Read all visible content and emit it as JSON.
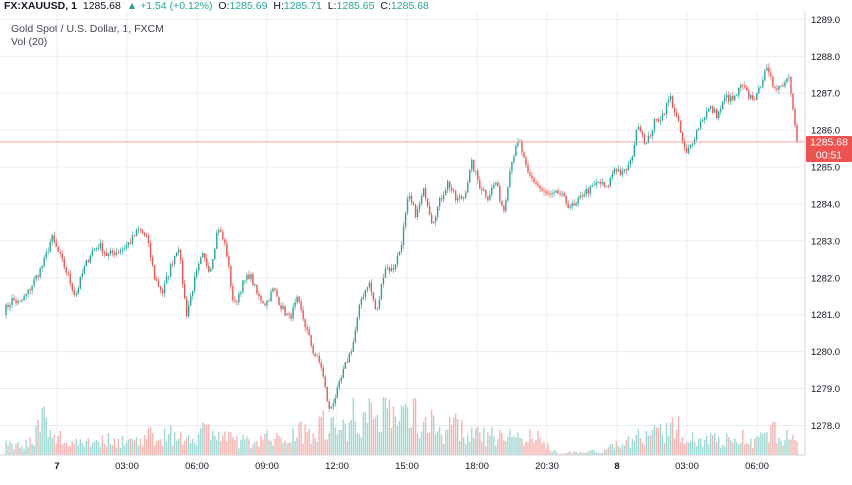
{
  "header": {
    "symbol": "FX:XAUUSD, 1",
    "last": "1285.68",
    "change_arrow": "▲",
    "change": "+1.54 (+0.12%)",
    "open_label": "O:",
    "open": "1285.69",
    "high_label": "H:",
    "high": "1285.71",
    "low_label": "L:",
    "low": "1285.65",
    "close_label": "C:",
    "close": "1285.68"
  },
  "legend": {
    "instrument": "Gold Spot / U.S. Dollar, 1, FXCM",
    "volume": "Vol (20)"
  },
  "price_label": {
    "value": "1285.68",
    "countdown": "00:51"
  },
  "colors": {
    "up": "#26a69a",
    "down": "#ef5350",
    "price_line": "#ef9a9a",
    "grid": "#e9edf3",
    "vol_up": "#9ed9d3",
    "vol_down": "#f7b4b1"
  },
  "chart_data": {
    "type": "candlestick",
    "ylim": [
      1277.2,
      1289.2
    ],
    "y_ticks": [
      1278.0,
      1279.0,
      1280.0,
      1281.0,
      1282.0,
      1283.0,
      1284.0,
      1285.0,
      1286.0,
      1287.0,
      1288.0,
      1289.0
    ],
    "x_ticks": [
      {
        "label": "7",
        "bold": true
      },
      {
        "label": "03:00",
        "bold": false
      },
      {
        "label": "06:00",
        "bold": false
      },
      {
        "label": "09:00",
        "bold": false
      },
      {
        "label": "12:00",
        "bold": false
      },
      {
        "label": "15:00",
        "bold": false
      },
      {
        "label": "18:00",
        "bold": false
      },
      {
        "label": "20:30",
        "bold": false
      },
      {
        "label": "8",
        "bold": true
      },
      {
        "label": "03:00",
        "bold": false
      },
      {
        "label": "06:00",
        "bold": false
      }
    ],
    "current_price": 1285.68,
    "price_path": [
      1281.1,
      1281.4,
      1281.3,
      1281.6,
      1282.0,
      1282.4,
      1283.1,
      1282.6,
      1282.1,
      1281.5,
      1282.2,
      1282.7,
      1282.9,
      1282.6,
      1282.7,
      1282.8,
      1283.0,
      1283.3,
      1283.1,
      1282.0,
      1281.6,
      1282.3,
      1282.9,
      1281.0,
      1281.9,
      1282.6,
      1282.2,
      1283.4,
      1282.8,
      1281.2,
      1281.8,
      1282.1,
      1281.5,
      1281.3,
      1281.7,
      1281.2,
      1280.9,
      1281.4,
      1280.7,
      1280.0,
      1279.6,
      1278.4,
      1278.9,
      1279.6,
      1280.2,
      1281.4,
      1281.9,
      1281.0,
      1282.3,
      1282.2,
      1282.8,
      1284.2,
      1283.7,
      1284.4,
      1283.5,
      1284.1,
      1284.6,
      1284.1,
      1284.2,
      1285.1,
      1284.5,
      1284.2,
      1284.6,
      1283.8,
      1285.2,
      1285.7,
      1284.8,
      1284.6,
      1284.3,
      1284.2,
      1284.3,
      1284.0,
      1283.9,
      1284.3,
      1284.4,
      1284.6,
      1284.4,
      1285.0,
      1284.8,
      1285.1,
      1286.2,
      1285.6,
      1286.2,
      1286.4,
      1286.9,
      1286.2,
      1285.3,
      1285.8,
      1286.3,
      1286.6,
      1286.4,
      1286.9,
      1286.8,
      1287.2,
      1286.9,
      1286.9,
      1287.7,
      1287.2,
      1287.2,
      1287.5,
      1285.8
    ],
    "volume_path": [
      12,
      10,
      14,
      10,
      22,
      36,
      14,
      18,
      11,
      14,
      14,
      15,
      13,
      15,
      15,
      14,
      13,
      18,
      17,
      20,
      20,
      22,
      14,
      18,
      20,
      24,
      26,
      20,
      16,
      15,
      14,
      12,
      16,
      18,
      14,
      16,
      20,
      24,
      26,
      25,
      30,
      33,
      24,
      26,
      42,
      38,
      38,
      34,
      52,
      44,
      36,
      42,
      40,
      34,
      30,
      24,
      26,
      28,
      22,
      20,
      18,
      18,
      19,
      16,
      20,
      18,
      17,
      18,
      12,
      6,
      2,
      2,
      3,
      2,
      4,
      3,
      6,
      8,
      12,
      16,
      18,
      16,
      20,
      22,
      24,
      26,
      20,
      18,
      14,
      16,
      16,
      14,
      16,
      18,
      16,
      14,
      18,
      22,
      20,
      18,
      18
    ]
  }
}
